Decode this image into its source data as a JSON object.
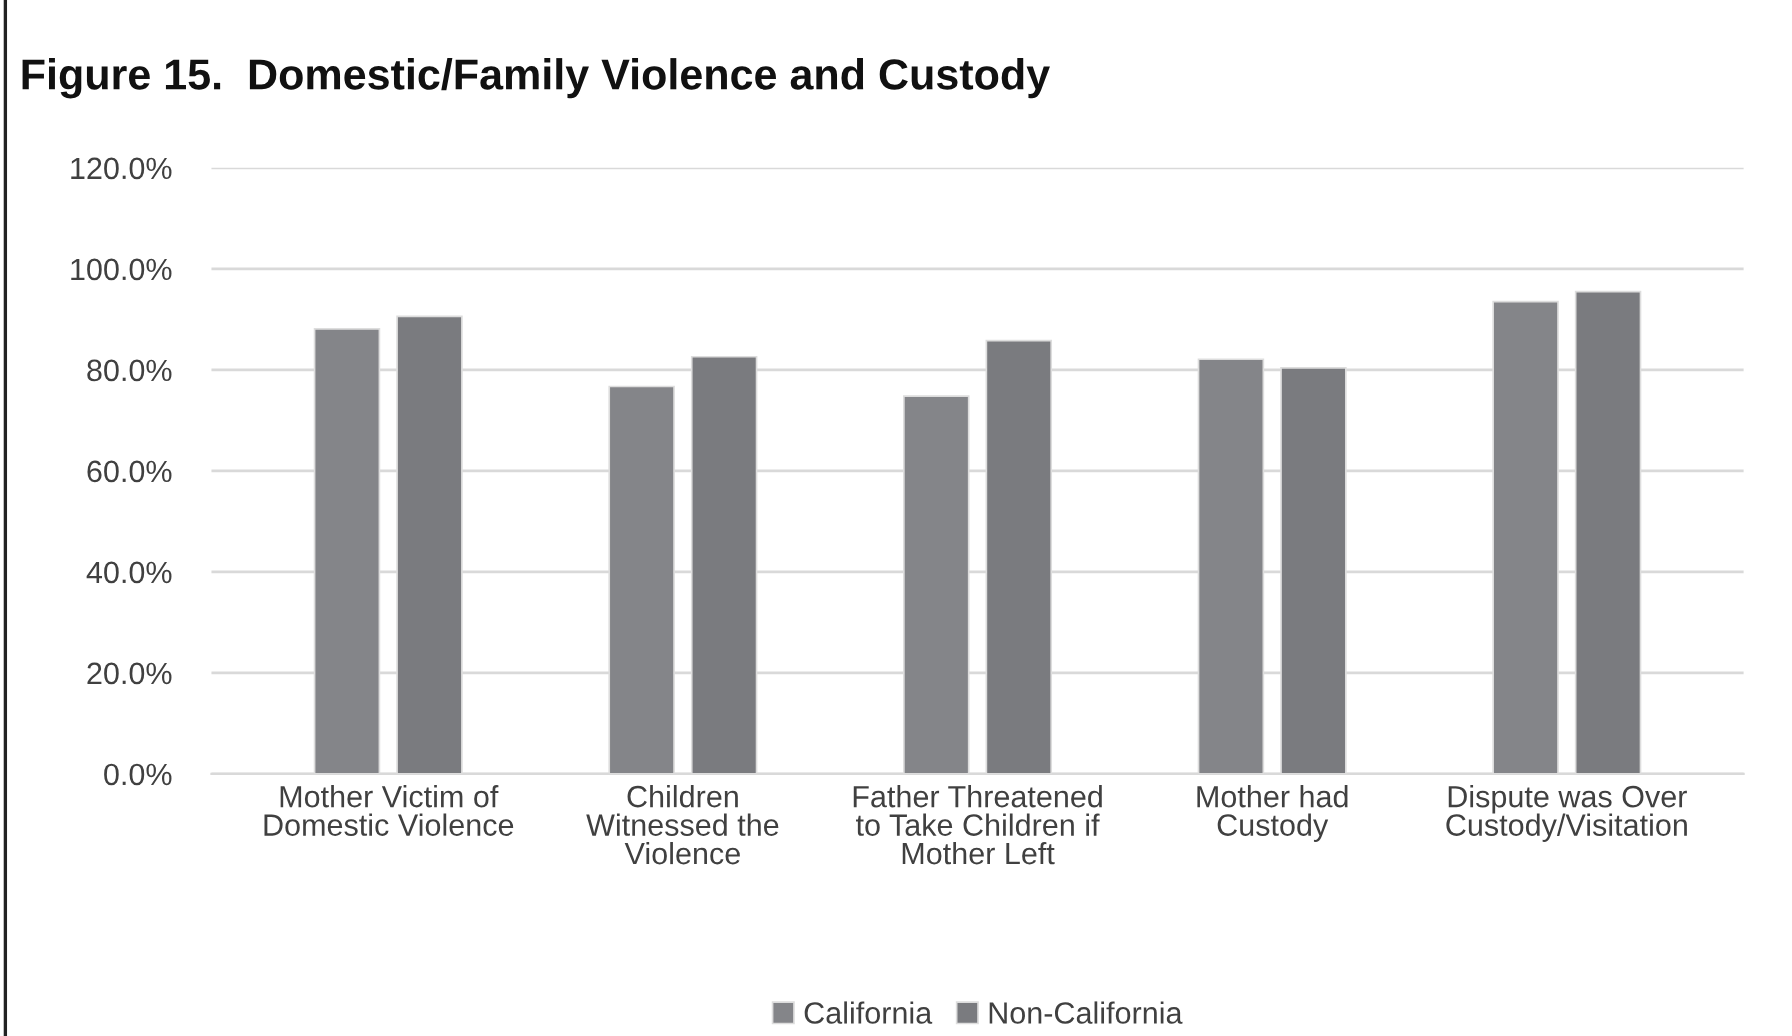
{
  "chart_data": {
    "type": "bar",
    "title": "Figure 15.  Domestic/Family Violence and Custody",
    "categories": [
      "Mother Victim of\nDomestic Violence",
      "Children\nWitnessed the\nViolence",
      "Father Threatened\nto Take Children if\nMother Left",
      "Mother had\nCustody",
      "Dispute was Over\nCustody/Visitation"
    ],
    "series": [
      {
        "name": "California",
        "color": "#848589",
        "values": [
          88.1,
          76.7,
          74.8,
          82.1,
          93.5
        ]
      },
      {
        "name": "Non-California",
        "color": "#7a7b7f",
        "values": [
          90.6,
          82.6,
          85.8,
          80.4,
          95.5
        ]
      }
    ],
    "ylim": [
      0,
      120
    ],
    "yticks": [
      {
        "value": 0,
        "label": "0.0%"
      },
      {
        "value": 20,
        "label": "20.0%"
      },
      {
        "value": 40,
        "label": "40.0%"
      },
      {
        "value": 60,
        "label": "60.0%"
      },
      {
        "value": 80,
        "label": "80.0%"
      },
      {
        "value": 100,
        "label": "100.0%"
      },
      {
        "value": 120,
        "label": "120.0%"
      }
    ],
    "grid": "y",
    "legend": "bottom"
  }
}
